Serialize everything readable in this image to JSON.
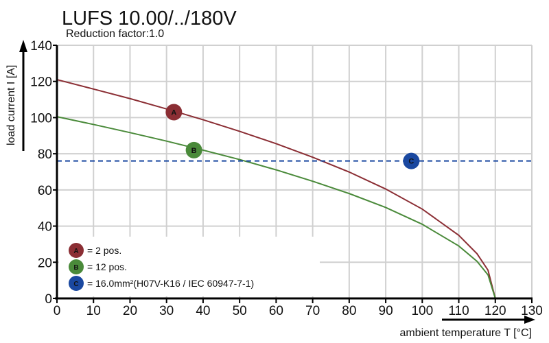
{
  "chart_data": {
    "type": "line",
    "title": "LUFS 10.00/../180V",
    "subtitle": "Reduction factor:1.0",
    "xlabel": "ambient temperature T [°C]",
    "ylabel": "load current I [A]",
    "xlim": [
      0,
      130
    ],
    "ylim": [
      0,
      140
    ],
    "xticks": [
      0,
      10,
      20,
      30,
      40,
      50,
      60,
      70,
      80,
      90,
      100,
      110,
      120,
      130
    ],
    "yticks": [
      0,
      20,
      40,
      60,
      80,
      100,
      120,
      140
    ],
    "grid": true,
    "legend_position": "bottom-left",
    "series": [
      {
        "marker": "A",
        "name": "= 2 pos.",
        "color": "#8b2e34",
        "x": [
          0,
          10,
          20,
          30,
          40,
          50,
          60,
          70,
          80,
          90,
          100,
          110,
          115,
          118,
          120
        ],
        "y": [
          121,
          115.8,
          110.5,
          104.8,
          98.8,
          92.4,
          85.6,
          78.1,
          69.9,
          60.5,
          49.4,
          34.9,
          24.7,
          15.6,
          0
        ],
        "label_at": [
          32,
          103
        ]
      },
      {
        "marker": "B",
        "name": "= 12 pos.",
        "color": "#4a8a3a",
        "x": [
          0,
          10,
          20,
          30,
          40,
          50,
          60,
          70,
          80,
          90,
          100,
          110,
          115,
          118,
          120
        ],
        "y": [
          100.5,
          96.2,
          91.7,
          87.0,
          82.0,
          76.8,
          71.1,
          64.8,
          58.0,
          50.3,
          41.0,
          29.0,
          20.5,
          13.0,
          0
        ],
        "label_at": [
          37.5,
          82
        ]
      },
      {
        "marker": "C",
        "name": "= 16.0mm²(H07V-K16 / IEC 60947-7-1)",
        "color": "#1a48a0",
        "dashed": true,
        "x": [
          0,
          130
        ],
        "y": [
          76,
          76
        ],
        "label_at": [
          97,
          76
        ]
      }
    ]
  }
}
